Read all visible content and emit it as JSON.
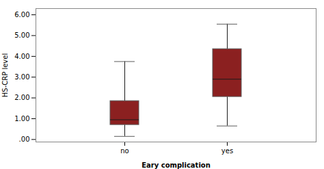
{
  "chart_data": {
    "type": "box",
    "categories": [
      "no",
      "yes"
    ],
    "boxes": [
      {
        "whisker_low": 0.15,
        "q1": 0.7,
        "median": 0.95,
        "q3": 1.85,
        "whisker_high": 3.75
      },
      {
        "whisker_low": 0.65,
        "q1": 2.05,
        "median": 2.9,
        "q3": 4.35,
        "whisker_high": 5.55
      }
    ],
    "color": "#8B2020",
    "xlabel": "Eary complication",
    "ylabel": "HS-CRP level",
    "ylim": [
      -0.12,
      6.3
    ],
    "yticks": [
      {
        "value": 0.0,
        "label": ".00"
      },
      {
        "value": 1.0,
        "label": "1.00"
      },
      {
        "value": 2.0,
        "label": "2.00"
      },
      {
        "value": 3.0,
        "label": "3.00"
      },
      {
        "value": 4.0,
        "label": "4.00"
      },
      {
        "value": 5.0,
        "label": "5.00"
      },
      {
        "value": 6.0,
        "label": "6.00"
      }
    ],
    "grid": false
  }
}
